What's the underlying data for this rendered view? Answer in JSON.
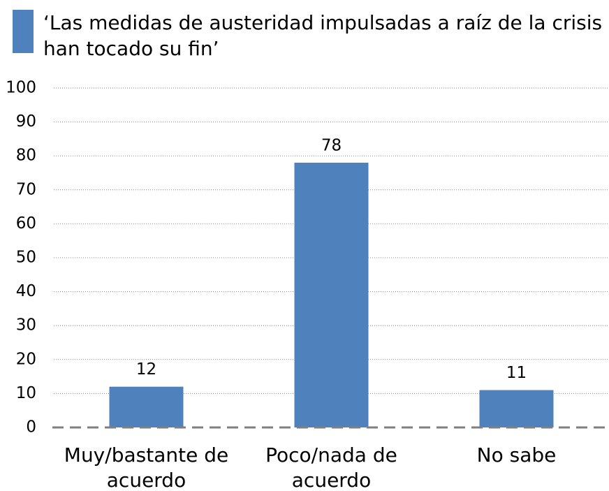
{
  "chart_data": {
    "type": "bar",
    "series": [
      {
        "name": "‘Las medidas de austeridad impulsadas a raíz de la crisis han tocado su fin’",
        "color": "#4f81bd",
        "values": [
          12,
          78,
          11
        ]
      }
    ],
    "categories": [
      "Muy/bastante de acuerdo",
      "Poco/nada de acuerdo",
      "No sabe"
    ],
    "ylim": [
      0,
      100
    ],
    "yticks": [
      0,
      10,
      20,
      30,
      40,
      50,
      60,
      70,
      80,
      90,
      100
    ],
    "grid": true,
    "legend": "top"
  }
}
